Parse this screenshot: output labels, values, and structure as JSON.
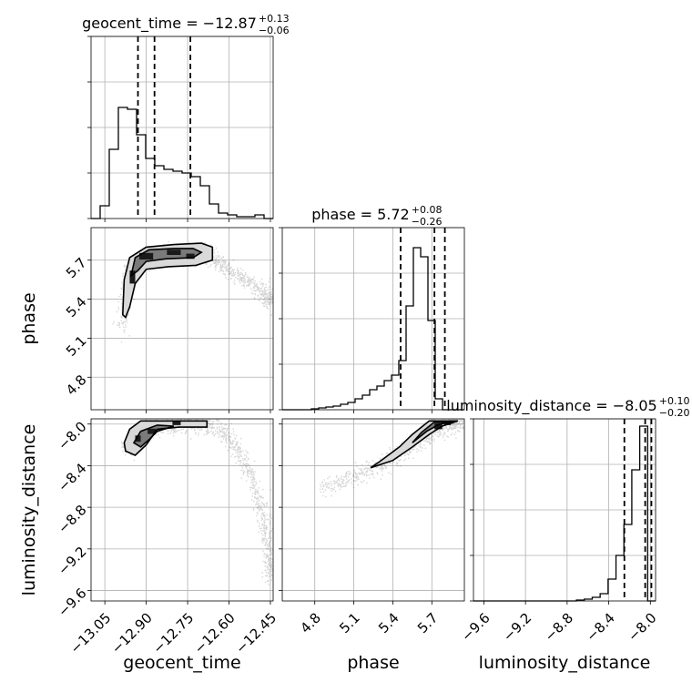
{
  "chart_data": {
    "type": "corner",
    "parameters": [
      {
        "key": "geocent_time",
        "label": "geocent_time",
        "title_main": "geocent_time = −12.87",
        "title_plus": "+0.13",
        "title_minus": "−0.06",
        "range": [
          -13.1,
          -12.44
        ],
        "ticks": [
          -13.05,
          -12.9,
          -12.75,
          -12.6,
          -12.45
        ],
        "tick_labels": [
          "−13.05",
          "−12.90",
          "−12.75",
          "−12.60",
          "−12.45"
        ],
        "quantiles": [
          -12.93,
          -12.87,
          -12.74
        ],
        "hist": [
          0,
          0.07,
          0.38,
          0.61,
          0.6,
          0.46,
          0.33,
          0.29,
          0.27,
          0.26,
          0.25,
          0.23,
          0.18,
          0.08,
          0.03,
          0.02,
          0.01,
          0.01,
          0.02,
          0
        ]
      },
      {
        "key": "phase",
        "label": "phase",
        "title_main": "phase = 5.72",
        "title_plus": "+0.08",
        "title_minus": "−0.26",
        "range": [
          4.55,
          5.95
        ],
        "ticks": [
          4.8,
          5.1,
          5.4,
          5.7
        ],
        "tick_labels": [
          "4.8",
          "5.1",
          "5.4",
          "5.7"
        ],
        "quantiles": [
          5.46,
          5.72,
          5.8
        ],
        "hist": [
          0,
          0,
          0,
          0,
          0.005,
          0.01,
          0.015,
          0.02,
          0.03,
          0.04,
          0.06,
          0.08,
          0.11,
          0.13,
          0.16,
          0.19,
          0.27,
          0.57,
          0.89,
          0.84,
          0.49,
          0.06,
          0,
          0,
          0
        ]
      },
      {
        "key": "luminosity_distance",
        "label": "luminosity_distance",
        "title_main": "luminosity_distance = −8.05",
        "title_plus": "+0.10",
        "title_minus": "−0.20",
        "range": [
          -9.7,
          -7.95
        ],
        "ticks": [
          -9.6,
          -9.2,
          -8.8,
          -8.4,
          -8.0
        ],
        "tick_labels": [
          "−9.6",
          "−9.2",
          "−8.8",
          "−8.4",
          "−8.0"
        ],
        "quantiles": [
          -8.25,
          -8.05,
          -7.99
        ],
        "hist": [
          0,
          0,
          0,
          0,
          0,
          0,
          0,
          0,
          0,
          0,
          0,
          0,
          0,
          0.005,
          0.01,
          0.02,
          0.04,
          0.12,
          0.25,
          0.42,
          0.72,
          0.96,
          0
        ]
      }
    ],
    "panels_2d": [
      {
        "x": "geocent_time",
        "y": "phase",
        "ridge": [
          [
            -12.99,
            5.18
          ],
          [
            -12.97,
            5.5
          ],
          [
            -12.95,
            5.64
          ],
          [
            -12.9,
            5.71
          ],
          [
            -12.82,
            5.74
          ],
          [
            -12.74,
            5.76
          ],
          [
            -12.68,
            5.76
          ],
          [
            -12.62,
            5.66
          ],
          [
            -12.55,
            5.56
          ],
          [
            -12.48,
            5.46
          ],
          [
            -12.45,
            5.38
          ]
        ],
        "contour_outer": [
          [
            -12.985,
            5.28
          ],
          [
            -12.98,
            5.55
          ],
          [
            -12.96,
            5.72
          ],
          [
            -12.9,
            5.8
          ],
          [
            -12.8,
            5.82
          ],
          [
            -12.7,
            5.83
          ],
          [
            -12.66,
            5.8
          ],
          [
            -12.66,
            5.7
          ],
          [
            -12.72,
            5.66
          ],
          [
            -12.82,
            5.65
          ],
          [
            -12.9,
            5.63
          ],
          [
            -12.94,
            5.52
          ],
          [
            -12.96,
            5.34
          ],
          [
            -12.975,
            5.26
          ]
        ],
        "contour_inner": [
          [
            -12.955,
            5.58
          ],
          [
            -12.94,
            5.72
          ],
          [
            -12.89,
            5.78
          ],
          [
            -12.8,
            5.79
          ],
          [
            -12.73,
            5.79
          ],
          [
            -12.7,
            5.76
          ],
          [
            -12.73,
            5.72
          ],
          [
            -12.83,
            5.71
          ],
          [
            -12.9,
            5.69
          ],
          [
            -12.93,
            5.62
          ]
        ],
        "core": [
          [
            -12.9,
            5.73,
            0.05,
            0.05
          ],
          [
            -12.8,
            5.76,
            0.05,
            0.04
          ],
          [
            -12.74,
            5.73,
            0.03,
            0.04
          ],
          [
            -12.95,
            5.57,
            0.02,
            0.1
          ]
        ]
      },
      {
        "x": "geocent_time",
        "y": "luminosity_distance",
        "ridge": [
          [
            -12.98,
            -8.24
          ],
          [
            -12.92,
            -8.08
          ],
          [
            -12.82,
            -8.02
          ],
          [
            -12.72,
            -8.0
          ],
          [
            -12.64,
            -8.02
          ],
          [
            -12.58,
            -8.2
          ],
          [
            -12.52,
            -8.5
          ],
          [
            -12.48,
            -8.85
          ],
          [
            -12.46,
            -9.2
          ],
          [
            -12.45,
            -9.45
          ]
        ],
        "contour_outer": [
          [
            -12.98,
            -8.18
          ],
          [
            -12.96,
            -8.05
          ],
          [
            -12.92,
            -7.97
          ],
          [
            -12.8,
            -7.97
          ],
          [
            -12.68,
            -7.97
          ],
          [
            -12.68,
            -8.03
          ],
          [
            -12.78,
            -8.03
          ],
          [
            -12.86,
            -8.05
          ],
          [
            -12.9,
            -8.2
          ],
          [
            -12.94,
            -8.3
          ],
          [
            -12.975,
            -8.26
          ]
        ],
        "contour_inner": [
          [
            -12.945,
            -8.18
          ],
          [
            -12.92,
            -8.07
          ],
          [
            -12.86,
            -8.01
          ],
          [
            -12.8,
            -8.02
          ],
          [
            -12.86,
            -8.07
          ],
          [
            -12.89,
            -8.15
          ],
          [
            -12.92,
            -8.22
          ]
        ],
        "core": [
          [
            -12.93,
            -8.14,
            0.02,
            0.06
          ],
          [
            -12.88,
            -8.07,
            0.03,
            0.05
          ],
          [
            -12.79,
            -7.99,
            0.03,
            0.04
          ]
        ]
      },
      {
        "x": "phase",
        "y": "luminosity_distance",
        "ridge": [
          [
            4.85,
            -8.62
          ],
          [
            5.1,
            -8.5
          ],
          [
            5.3,
            -8.4
          ],
          [
            5.5,
            -8.25
          ],
          [
            5.65,
            -8.1
          ],
          [
            5.75,
            -8.02
          ],
          [
            5.85,
            -7.99
          ],
          [
            5.93,
            -7.97
          ]
        ],
        "contour_outer": [
          [
            5.23,
            -8.42
          ],
          [
            5.4,
            -8.35
          ],
          [
            5.55,
            -8.22
          ],
          [
            5.68,
            -8.1
          ],
          [
            5.78,
            -8.02
          ],
          [
            5.9,
            -7.97
          ],
          [
            5.68,
            -7.97
          ],
          [
            5.55,
            -8.1
          ],
          [
            5.45,
            -8.22
          ],
          [
            5.3,
            -8.36
          ]
        ],
        "contour_inner": [
          [
            5.55,
            -8.18
          ],
          [
            5.66,
            -8.07
          ],
          [
            5.76,
            -8.0
          ],
          [
            5.86,
            -7.98
          ],
          [
            5.72,
            -7.98
          ],
          [
            5.62,
            -8.08
          ]
        ],
        "core": [
          [
            5.75,
            -8.02,
            0.06,
            0.06
          ],
          [
            5.82,
            -7.99,
            0.05,
            0.04
          ]
        ]
      }
    ]
  }
}
